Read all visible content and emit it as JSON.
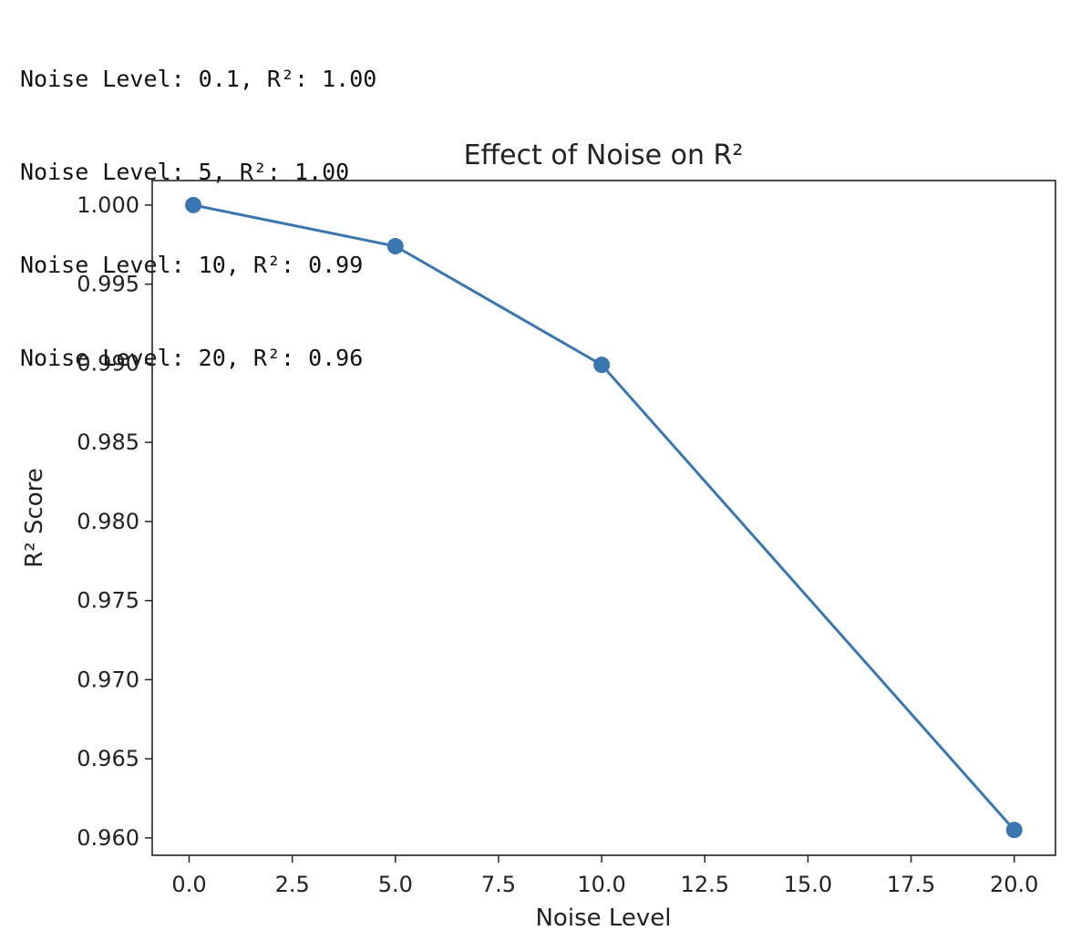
{
  "console": {
    "lines": [
      "Noise Level: 0.1, R²: 1.00",
      "Noise Level: 5, R²: 1.00",
      "Noise Level: 10, R²: 0.99",
      "Noise Level: 20, R²: 0.96"
    ]
  },
  "chart_data": {
    "type": "line",
    "title": "Effect of Noise on R²",
    "xlabel": "Noise Level",
    "ylabel": "R² Score",
    "x": [
      0.1,
      5,
      10,
      20
    ],
    "series": [
      {
        "values": [
          1.0,
          0.9974,
          0.9899,
          0.9605
        ]
      }
    ],
    "xlim": [
      -0.895,
      21.0
    ],
    "ylim": [
      0.9589,
      1.00155
    ],
    "xticks": [
      0.0,
      2.5,
      5.0,
      7.5,
      10.0,
      12.5,
      15.0,
      17.5,
      20.0
    ],
    "xtick_labels": [
      "0.0",
      "2.5",
      "5.0",
      "7.5",
      "10.0",
      "12.5",
      "15.0",
      "17.5",
      "20.0"
    ],
    "yticks": [
      0.96,
      0.965,
      0.97,
      0.975,
      0.98,
      0.985,
      0.99,
      0.995,
      1.0
    ],
    "ytick_labels": [
      "0.960",
      "0.965",
      "0.970",
      "0.975",
      "0.980",
      "0.985",
      "0.990",
      "0.995",
      "1.000"
    ],
    "grid": false,
    "line_color": "#3a76b0",
    "marker": "circle"
  }
}
